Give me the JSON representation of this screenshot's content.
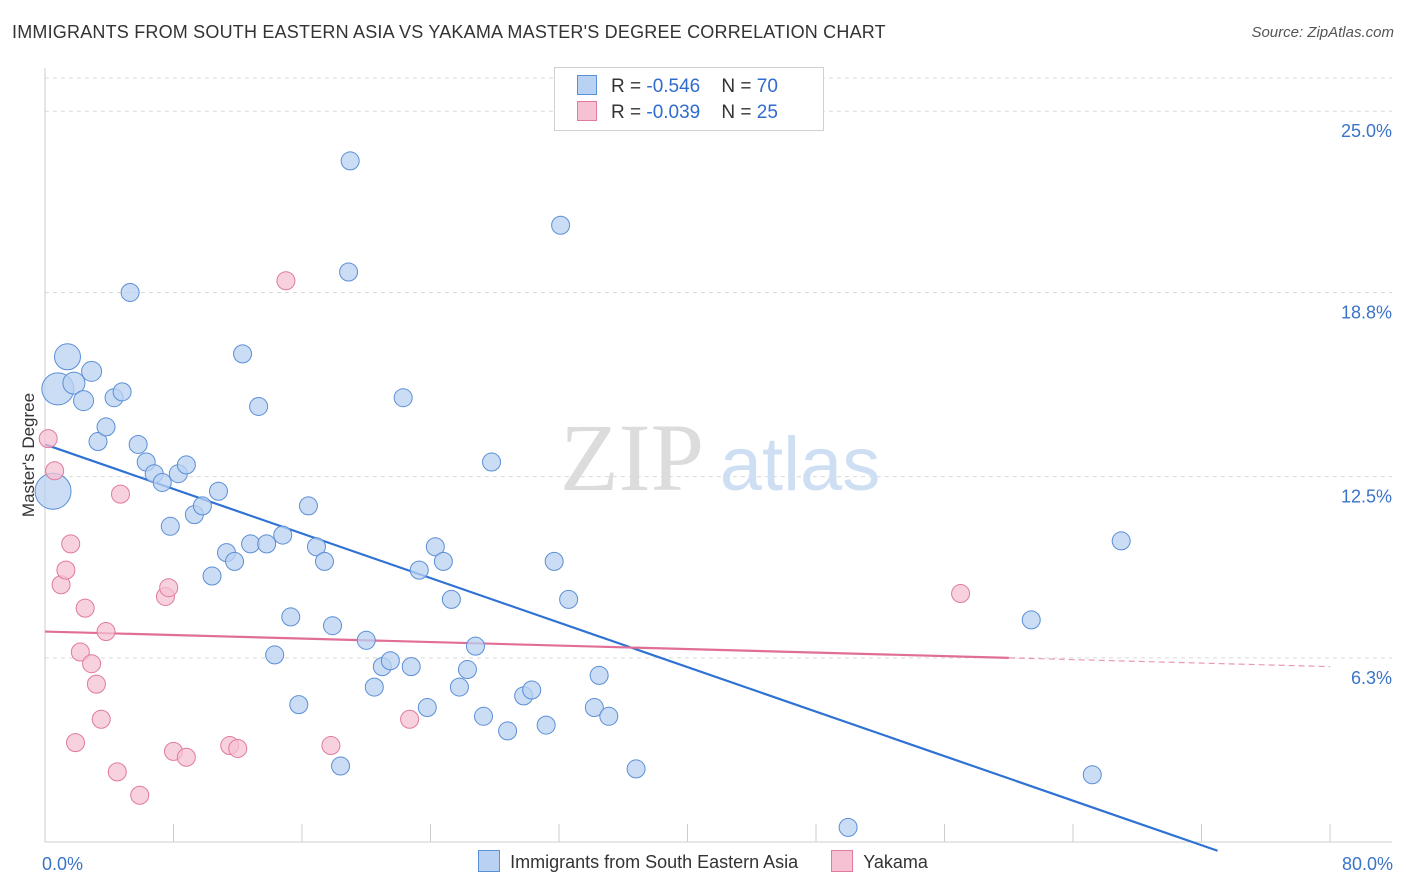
{
  "title": "IMMIGRANTS FROM SOUTH EASTERN ASIA VS YAKAMA MASTER'S DEGREE CORRELATION CHART",
  "source": "Source: ZipAtlas.com",
  "watermark": {
    "zip": "ZIP",
    "atlas": "atlas"
  },
  "legend": {
    "series1": {
      "r_label": "R = ",
      "r_value": "-0.546",
      "n_label": "N = ",
      "n_value": "70"
    },
    "series2": {
      "r_label": "R = ",
      "r_value": "-0.039",
      "n_label": "N = ",
      "n_value": "25"
    }
  },
  "colors": {
    "blue": "#5b8fd6",
    "blue_fill": "#b9d1f2",
    "pink": "#e07a9e",
    "pink_fill": "#f6c2d3",
    "blue_line": "#2f72d4",
    "pink_line": "#e06e97",
    "label": "#3a74c9"
  },
  "chart_data": {
    "type": "scatter",
    "xlabel": "",
    "ylabel": "Master's Degree",
    "xlim": [
      0,
      80
    ],
    "ylim": [
      0,
      26
    ],
    "x_tick_labels": [
      {
        "value": 0,
        "label": "0.0%"
      },
      {
        "value": 80,
        "label": "80.0%"
      }
    ],
    "y_ticks": [
      {
        "value": 6.3,
        "label": "6.3%"
      },
      {
        "value": 12.5,
        "label": "12.5%"
      },
      {
        "value": 18.8,
        "label": "18.8%"
      },
      {
        "value": 25.0,
        "label": "25.0%"
      }
    ],
    "x_minor_ticks": [
      8,
      16,
      24,
      32,
      40,
      48,
      56,
      64,
      72,
      80
    ],
    "grid": true,
    "legend_position": "top-center",
    "series": [
      {
        "name": "Immigrants from South Eastern Asia",
        "color": "#5b8fd6",
        "trend": {
          "x": [
            0,
            73
          ],
          "y": [
            13.6,
            -0.3
          ]
        },
        "points": [
          {
            "x": 0.5,
            "y": 12.0,
            "s": 18
          },
          {
            "x": 0.8,
            "y": 15.5,
            "s": 16
          },
          {
            "x": 1.4,
            "y": 16.6,
            "s": 13
          },
          {
            "x": 1.8,
            "y": 15.7,
            "s": 11
          },
          {
            "x": 2.4,
            "y": 15.1,
            "s": 10
          },
          {
            "x": 2.9,
            "y": 16.1,
            "s": 10
          },
          {
            "x": 3.3,
            "y": 13.7,
            "s": 9
          },
          {
            "x": 3.8,
            "y": 14.2,
            "s": 9
          },
          {
            "x": 4.3,
            "y": 15.2,
            "s": 9
          },
          {
            "x": 4.8,
            "y": 15.4,
            "s": 9
          },
          {
            "x": 5.3,
            "y": 18.8,
            "s": 9
          },
          {
            "x": 5.8,
            "y": 13.6,
            "s": 9
          },
          {
            "x": 6.3,
            "y": 13.0,
            "s": 9
          },
          {
            "x": 6.8,
            "y": 12.6,
            "s": 9
          },
          {
            "x": 7.3,
            "y": 12.3,
            "s": 9
          },
          {
            "x": 7.8,
            "y": 10.8,
            "s": 9
          },
          {
            "x": 8.3,
            "y": 12.6,
            "s": 9
          },
          {
            "x": 8.8,
            "y": 12.9,
            "s": 9
          },
          {
            "x": 9.3,
            "y": 11.2,
            "s": 9
          },
          {
            "x": 9.8,
            "y": 11.5,
            "s": 9
          },
          {
            "x": 10.4,
            "y": 9.1,
            "s": 9
          },
          {
            "x": 10.8,
            "y": 12.0,
            "s": 9
          },
          {
            "x": 11.3,
            "y": 9.9,
            "s": 9
          },
          {
            "x": 11.8,
            "y": 9.6,
            "s": 9
          },
          {
            "x": 12.3,
            "y": 16.7,
            "s": 9
          },
          {
            "x": 12.8,
            "y": 10.2,
            "s": 9
          },
          {
            "x": 13.3,
            "y": 14.9,
            "s": 9
          },
          {
            "x": 13.8,
            "y": 10.2,
            "s": 9
          },
          {
            "x": 14.3,
            "y": 6.4,
            "s": 9
          },
          {
            "x": 14.8,
            "y": 10.5,
            "s": 9
          },
          {
            "x": 15.3,
            "y": 7.7,
            "s": 9
          },
          {
            "x": 15.8,
            "y": 4.7,
            "s": 9
          },
          {
            "x": 16.4,
            "y": 11.5,
            "s": 9
          },
          {
            "x": 16.9,
            "y": 10.1,
            "s": 9
          },
          {
            "x": 17.4,
            "y": 9.6,
            "s": 9
          },
          {
            "x": 17.9,
            "y": 7.4,
            "s": 9
          },
          {
            "x": 18.4,
            "y": 2.6,
            "s": 9
          },
          {
            "x": 19.0,
            "y": 23.3,
            "s": 9
          },
          {
            "x": 18.9,
            "y": 19.5,
            "s": 9
          },
          {
            "x": 20.0,
            "y": 6.9,
            "s": 9
          },
          {
            "x": 20.5,
            "y": 5.3,
            "s": 9
          },
          {
            "x": 21.0,
            "y": 6.0,
            "s": 9
          },
          {
            "x": 21.5,
            "y": 6.2,
            "s": 9
          },
          {
            "x": 22.3,
            "y": 15.2,
            "s": 9
          },
          {
            "x": 22.8,
            "y": 6.0,
            "s": 9
          },
          {
            "x": 23.3,
            "y": 9.3,
            "s": 9
          },
          {
            "x": 23.8,
            "y": 4.6,
            "s": 9
          },
          {
            "x": 24.3,
            "y": 10.1,
            "s": 9
          },
          {
            "x": 24.8,
            "y": 9.6,
            "s": 9
          },
          {
            "x": 25.3,
            "y": 8.3,
            "s": 9
          },
          {
            "x": 25.8,
            "y": 5.3,
            "s": 9
          },
          {
            "x": 26.3,
            "y": 5.9,
            "s": 9
          },
          {
            "x": 26.8,
            "y": 6.7,
            "s": 9
          },
          {
            "x": 27.3,
            "y": 4.3,
            "s": 9
          },
          {
            "x": 27.8,
            "y": 13.0,
            "s": 9
          },
          {
            "x": 28.8,
            "y": 3.8,
            "s": 9
          },
          {
            "x": 29.8,
            "y": 5.0,
            "s": 9
          },
          {
            "x": 30.3,
            "y": 5.2,
            "s": 9
          },
          {
            "x": 31.2,
            "y": 4.0,
            "s": 9
          },
          {
            "x": 31.7,
            "y": 9.6,
            "s": 9
          },
          {
            "x": 32.1,
            "y": 21.1,
            "s": 9
          },
          {
            "x": 32.6,
            "y": 8.3,
            "s": 9
          },
          {
            "x": 34.2,
            "y": 4.6,
            "s": 9
          },
          {
            "x": 34.5,
            "y": 5.7,
            "s": 9
          },
          {
            "x": 35.1,
            "y": 4.3,
            "s": 9
          },
          {
            "x": 36.8,
            "y": 2.5,
            "s": 9
          },
          {
            "x": 50.0,
            "y": 0.5,
            "s": 9
          },
          {
            "x": 61.4,
            "y": 7.6,
            "s": 9
          },
          {
            "x": 65.2,
            "y": 2.3,
            "s": 9
          },
          {
            "x": 67.0,
            "y": 10.3,
            "s": 9
          }
        ]
      },
      {
        "name": "Yakama",
        "color": "#e07a9e",
        "trend": {
          "x": [
            0,
            60
          ],
          "y": [
            7.2,
            6.3
          ]
        },
        "trend_dashed": {
          "x": [
            60,
            80
          ],
          "y": [
            6.3,
            6.0
          ]
        },
        "points": [
          {
            "x": 0.2,
            "y": 13.8,
            "s": 9
          },
          {
            "x": 0.6,
            "y": 12.7,
            "s": 9
          },
          {
            "x": 1.0,
            "y": 8.8,
            "s": 9
          },
          {
            "x": 1.3,
            "y": 9.3,
            "s": 9
          },
          {
            "x": 1.6,
            "y": 10.2,
            "s": 9
          },
          {
            "x": 1.9,
            "y": 3.4,
            "s": 9
          },
          {
            "x": 2.2,
            "y": 6.5,
            "s": 9
          },
          {
            "x": 2.5,
            "y": 8.0,
            "s": 9
          },
          {
            "x": 2.9,
            "y": 6.1,
            "s": 9
          },
          {
            "x": 3.2,
            "y": 5.4,
            "s": 9
          },
          {
            "x": 3.5,
            "y": 4.2,
            "s": 9
          },
          {
            "x": 3.8,
            "y": 7.2,
            "s": 9
          },
          {
            "x": 4.5,
            "y": 2.4,
            "s": 9
          },
          {
            "x": 4.7,
            "y": 11.9,
            "s": 9
          },
          {
            "x": 5.9,
            "y": 1.6,
            "s": 9
          },
          {
            "x": 7.5,
            "y": 8.4,
            "s": 9
          },
          {
            "x": 7.7,
            "y": 8.7,
            "s": 9
          },
          {
            "x": 8.0,
            "y": 3.1,
            "s": 9
          },
          {
            "x": 8.8,
            "y": 2.9,
            "s": 9
          },
          {
            "x": 11.5,
            "y": 3.3,
            "s": 9
          },
          {
            "x": 12.0,
            "y": 3.2,
            "s": 9
          },
          {
            "x": 15.0,
            "y": 19.2,
            "s": 9
          },
          {
            "x": 17.8,
            "y": 3.3,
            "s": 9
          },
          {
            "x": 22.7,
            "y": 4.2,
            "s": 9
          },
          {
            "x": 57.0,
            "y": 8.5,
            "s": 9
          }
        ]
      }
    ]
  }
}
